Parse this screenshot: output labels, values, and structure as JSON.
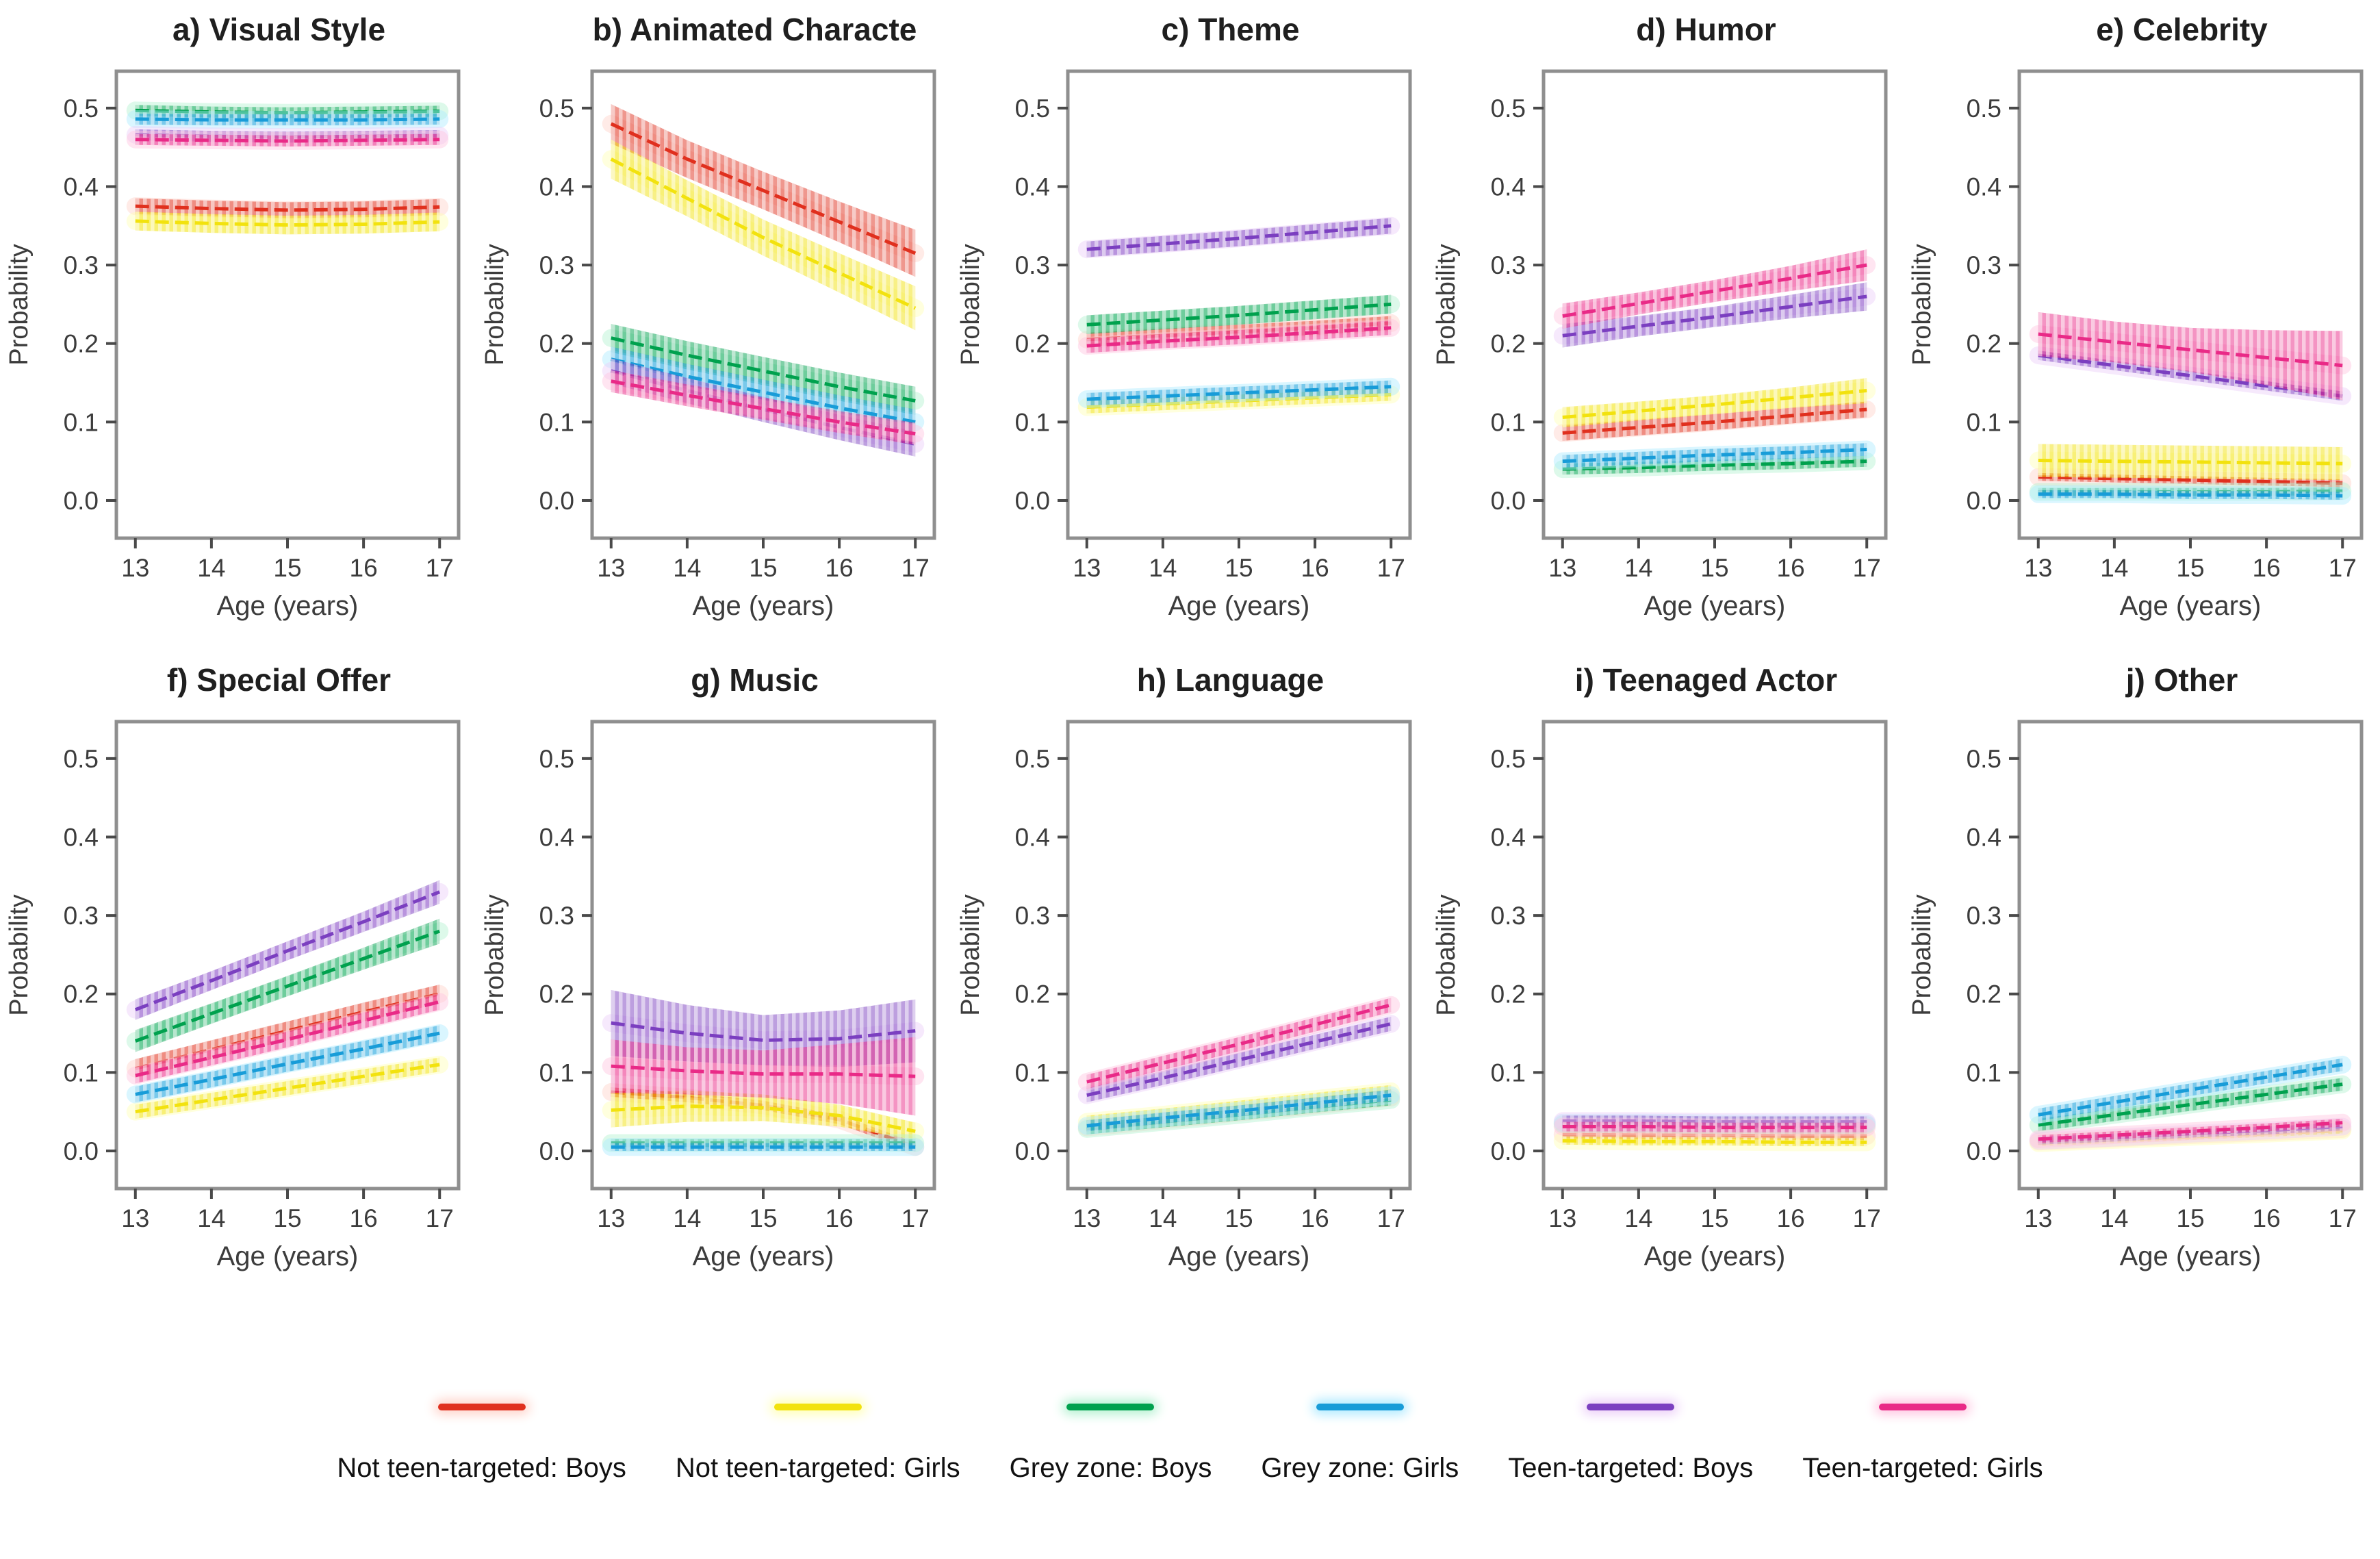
{
  "figure": {
    "xlabel": "Age (years)",
    "ylabel": "Probability",
    "x_ticks": [
      13,
      14,
      15,
      16,
      17
    ],
    "x_tick_labels": [
      "13",
      "14",
      "15",
      "16",
      "17"
    ],
    "y_ticks": [
      0.0,
      0.1,
      0.2,
      0.3,
      0.4,
      0.5
    ],
    "y_tick_labels": [
      "0.0",
      "0.1",
      "0.2",
      "0.3",
      "0.4",
      "0.5"
    ],
    "ylim": [
      0.0,
      0.5
    ],
    "grid": "off",
    "legend_position": "bottom"
  },
  "series_meta": [
    {
      "key": "nt_boys",
      "label": "Not teen-targeted: Boys",
      "color": "#e0301e",
      "halo": "#ffd3ca"
    },
    {
      "key": "nt_girls",
      "label": "Not teen-targeted: Girls",
      "color": "#f2e20e",
      "halo": "#ffffb5"
    },
    {
      "key": "gz_boys",
      "label": "Grey zone: Boys",
      "color": "#00a14e",
      "halo": "#b4f1d1"
    },
    {
      "key": "gz_girls",
      "label": "Grey zone: Girls",
      "color": "#189cd8",
      "halo": "#aeeaff"
    },
    {
      "key": "tt_boys",
      "label": "Teen-targeted: Boys",
      "color": "#7b3fc0",
      "halo": "#eccff8"
    },
    {
      "key": "tt_girls",
      "label": "Teen-targeted: Girls",
      "color": "#e92a87",
      "halo": "#ffc6e1"
    }
  ],
  "chart_data": [
    {
      "id": "a",
      "type": "line",
      "title": "a) Visual Style",
      "x": [
        13,
        14,
        15,
        16,
        17
      ],
      "series": {
        "nt_boys": {
          "values": [
            0.375,
            0.372,
            0.37,
            0.371,
            0.374
          ],
          "band": 0.01
        },
        "nt_girls": {
          "values": [
            0.356,
            0.353,
            0.351,
            0.352,
            0.355
          ],
          "band": 0.012
        },
        "gz_boys": {
          "values": [
            0.497,
            0.495,
            0.494,
            0.495,
            0.496
          ],
          "band": 0.007
        },
        "gz_girls": {
          "values": [
            0.486,
            0.485,
            0.485,
            0.485,
            0.486
          ],
          "band": 0.007
        },
        "tt_boys": {
          "values": [
            0.466,
            0.464,
            0.463,
            0.464,
            0.465
          ],
          "band": 0.007
        },
        "tt_girls": {
          "values": [
            0.46,
            0.459,
            0.458,
            0.459,
            0.46
          ],
          "band": 0.007
        }
      }
    },
    {
      "id": "b",
      "type": "line",
      "title": "b) Animated Characte",
      "x": [
        13,
        14,
        15,
        16,
        17
      ],
      "series": {
        "nt_boys": {
          "values": [
            0.48,
            0.435,
            0.395,
            0.355,
            0.315
          ],
          "band": [
            0.025,
            0.024,
            0.024,
            0.026,
            0.03
          ]
        },
        "nt_girls": {
          "values": [
            0.435,
            0.385,
            0.335,
            0.29,
            0.245
          ],
          "band": [
            0.025,
            0.023,
            0.023,
            0.025,
            0.028
          ]
        },
        "gz_boys": {
          "values": [
            0.207,
            0.185,
            0.165,
            0.145,
            0.127
          ],
          "band": 0.018
        },
        "gz_girls": {
          "values": [
            0.18,
            0.158,
            0.138,
            0.118,
            0.1
          ],
          "band": 0.016
        },
        "tt_boys": {
          "values": [
            0.165,
            0.14,
            0.116,
            0.093,
            0.072
          ],
          "band": 0.016
        },
        "tt_girls": {
          "values": [
            0.152,
            0.134,
            0.117,
            0.1,
            0.085
          ],
          "band": 0.014
        }
      }
    },
    {
      "id": "c",
      "type": "line",
      "title": "c) Theme",
      "x": [
        13,
        14,
        15,
        16,
        17
      ],
      "series": {
        "nt_boys": {
          "values": [
            0.205,
            0.21,
            0.215,
            0.22,
            0.226
          ],
          "band": 0.009
        },
        "nt_girls": {
          "values": [
            0.119,
            0.123,
            0.127,
            0.131,
            0.135
          ],
          "band": 0.008
        },
        "gz_boys": {
          "values": [
            0.224,
            0.23,
            0.236,
            0.243,
            0.25
          ],
          "band": 0.012
        },
        "gz_girls": {
          "values": [
            0.129,
            0.133,
            0.137,
            0.141,
            0.145
          ],
          "band": 0.008
        },
        "tt_boys": {
          "values": [
            0.32,
            0.327,
            0.334,
            0.342,
            0.35
          ],
          "band": 0.01
        },
        "tt_girls": {
          "values": [
            0.197,
            0.203,
            0.208,
            0.214,
            0.22
          ],
          "band": 0.009
        }
      }
    },
    {
      "id": "d",
      "type": "line",
      "title": "d) Humor",
      "x": [
        13,
        14,
        15,
        16,
        17
      ],
      "series": {
        "nt_boys": {
          "values": [
            0.086,
            0.093,
            0.1,
            0.108,
            0.116
          ],
          "band": 0.01
        },
        "nt_girls": {
          "values": [
            0.106,
            0.114,
            0.122,
            0.131,
            0.14
          ],
          "band": [
            0.013,
            0.012,
            0.012,
            0.013,
            0.016
          ]
        },
        "gz_boys": {
          "values": [
            0.04,
            0.042,
            0.045,
            0.047,
            0.05
          ],
          "band": 0.007
        },
        "gz_girls": {
          "values": [
            0.05,
            0.054,
            0.058,
            0.061,
            0.065
          ],
          "band": 0.008
        },
        "tt_boys": {
          "values": [
            0.21,
            0.222,
            0.234,
            0.247,
            0.26
          ],
          "band": [
            0.015,
            0.013,
            0.013,
            0.015,
            0.018
          ]
        },
        "tt_girls": {
          "values": [
            0.235,
            0.251,
            0.267,
            0.283,
            0.3
          ],
          "band": [
            0.016,
            0.014,
            0.014,
            0.016,
            0.02
          ]
        }
      }
    },
    {
      "id": "e",
      "type": "line",
      "title": "e) Celebrity",
      "x": [
        13,
        14,
        15,
        16,
        17
      ],
      "series": {
        "nt_boys": {
          "values": [
            0.03,
            0.028,
            0.026,
            0.024,
            0.022
          ],
          "band": 0.005
        },
        "nt_girls": {
          "values": [
            0.051,
            0.05,
            0.049,
            0.048,
            0.047
          ],
          "band": 0.021
        },
        "gz_boys": {
          "values": [
            0.011,
            0.011,
            0.011,
            0.011,
            0.012
          ],
          "band": 0.005
        },
        "gz_girls": {
          "values": [
            0.008,
            0.008,
            0.007,
            0.007,
            0.006
          ],
          "band": 0.005
        },
        "tt_boys": {
          "values": [
            0.185,
            0.172,
            0.159,
            0.146,
            0.133
          ],
          "band": 0.006
        },
        "tt_girls": {
          "values": [
            0.212,
            0.202,
            0.192,
            0.182,
            0.172
          ],
          "band": [
            0.028,
            0.026,
            0.028,
            0.035,
            0.044
          ]
        }
      }
    },
    {
      "id": "f",
      "type": "line",
      "title": "f) Special Offer",
      "x": [
        13,
        14,
        15,
        16,
        17
      ],
      "series": {
        "nt_boys": {
          "values": [
            0.105,
            0.129,
            0.153,
            0.177,
            0.2
          ],
          "band": 0.012
        },
        "nt_girls": {
          "values": [
            0.05,
            0.065,
            0.08,
            0.095,
            0.11
          ],
          "band": 0.009
        },
        "gz_boys": {
          "values": [
            0.14,
            0.175,
            0.21,
            0.245,
            0.28
          ],
          "band": [
            0.014,
            0.013,
            0.013,
            0.014,
            0.016
          ]
        },
        "gz_girls": {
          "values": [
            0.072,
            0.091,
            0.111,
            0.13,
            0.15
          ],
          "band": 0.01
        },
        "tt_boys": {
          "values": [
            0.18,
            0.217,
            0.255,
            0.292,
            0.33
          ],
          "band": [
            0.013,
            0.012,
            0.012,
            0.013,
            0.015
          ]
        },
        "tt_girls": {
          "values": [
            0.096,
            0.119,
            0.142,
            0.166,
            0.19
          ],
          "band": 0.01
        }
      }
    },
    {
      "id": "g",
      "type": "line",
      "title": "g) Music",
      "x": [
        13,
        14,
        15,
        16,
        17
      ],
      "series": {
        "nt_boys": {
          "values": [
            0.075,
            0.068,
            0.058,
            0.04,
            0.005
          ],
          "band": 0.006
        },
        "nt_girls": {
          "values": [
            0.052,
            0.057,
            0.055,
            0.045,
            0.025
          ],
          "band": [
            0.022,
            0.02,
            0.017,
            0.014,
            0.011
          ]
        },
        "gz_boys": {
          "values": [
            0.01,
            0.01,
            0.01,
            0.01,
            0.01
          ],
          "band": 0.005
        },
        "gz_girls": {
          "values": [
            0.005,
            0.005,
            0.005,
            0.005,
            0.005
          ],
          "band": 0.005
        },
        "tt_boys": {
          "values": [
            0.163,
            0.15,
            0.141,
            0.143,
            0.153
          ],
          "band": [
            0.042,
            0.036,
            0.032,
            0.036,
            0.04
          ]
        },
        "tt_girls": {
          "values": [
            0.108,
            0.102,
            0.098,
            0.098,
            0.095
          ],
          "band": [
            0.034,
            0.03,
            0.03,
            0.038,
            0.05
          ]
        }
      }
    },
    {
      "id": "h",
      "type": "line",
      "title": "h) Language",
      "x": [
        13,
        14,
        15,
        16,
        17
      ],
      "series": {
        "nt_boys": {
          "values": [
            0.03,
            0.039,
            0.049,
            0.058,
            0.068
          ],
          "band": 0.005
        },
        "nt_girls": {
          "values": [
            0.037,
            0.046,
            0.056,
            0.066,
            0.076
          ],
          "band": 0.008
        },
        "gz_boys": {
          "values": [
            0.028,
            0.037,
            0.046,
            0.056,
            0.065
          ],
          "band": 0.007
        },
        "gz_girls": {
          "values": [
            0.032,
            0.042,
            0.051,
            0.061,
            0.071
          ],
          "band": 0.007
        },
        "tt_boys": {
          "values": [
            0.071,
            0.093,
            0.116,
            0.139,
            0.162
          ],
          "band": 0.009
        },
        "tt_girls": {
          "values": [
            0.088,
            0.112,
            0.136,
            0.161,
            0.186
          ],
          "band": 0.009
        }
      }
    },
    {
      "id": "i",
      "type": "line",
      "title": "i) Teenaged Actor",
      "x": [
        13,
        14,
        15,
        16,
        17
      ],
      "series": {
        "nt_boys": {
          "values": [
            0.021,
            0.02,
            0.02,
            0.019,
            0.019
          ],
          "band": 0.005
        },
        "nt_girls": {
          "values": [
            0.013,
            0.012,
            0.012,
            0.011,
            0.011
          ],
          "band": 0.005
        },
        "gz_boys": {
          "values": [
            0.034,
            0.034,
            0.033,
            0.033,
            0.033
          ],
          "band": 0.004
        },
        "gz_girls": {
          "values": [
            0.036,
            0.036,
            0.035,
            0.035,
            0.035
          ],
          "band": 0.004
        },
        "tt_boys": {
          "values": [
            0.038,
            0.038,
            0.037,
            0.037,
            0.037
          ],
          "band": 0.007
        },
        "tt_girls": {
          "values": [
            0.031,
            0.031,
            0.03,
            0.03,
            0.03
          ],
          "band": 0.006
        }
      }
    },
    {
      "id": "j",
      "type": "line",
      "title": "j) Other",
      "x": [
        13,
        14,
        15,
        16,
        17
      ],
      "series": {
        "nt_boys": {
          "values": [
            0.012,
            0.016,
            0.02,
            0.024,
            0.028
          ],
          "band": 0.004
        },
        "nt_girls": {
          "values": [
            0.01,
            0.014,
            0.018,
            0.022,
            0.026
          ],
          "band": 0.004
        },
        "gz_boys": {
          "values": [
            0.033,
            0.046,
            0.059,
            0.072,
            0.085
          ],
          "band": 0.008
        },
        "gz_girls": {
          "values": [
            0.046,
            0.062,
            0.078,
            0.094,
            0.11
          ],
          "band": 0.008
        },
        "tt_boys": {
          "values": [
            0.013,
            0.017,
            0.022,
            0.026,
            0.031
          ],
          "band": 0.005
        },
        "tt_girls": {
          "values": [
            0.015,
            0.02,
            0.025,
            0.03,
            0.036
          ],
          "band": 0.005
        }
      }
    }
  ]
}
